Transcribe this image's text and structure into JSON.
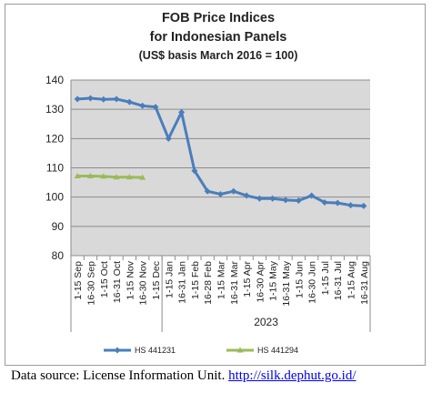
{
  "chart_data": {
    "type": "line",
    "title": [
      "FOB Price Indices",
      "for Indonesian Panels",
      "(US$ basis March 2016 = 100)"
    ],
    "categories": [
      "1-15 Sep",
      "16-30 Sep",
      "1-15 Oct",
      "16-31 Oct",
      "1-15 Nov",
      "16-30 Nov",
      "1-15 Dec",
      "1-15 Jan",
      "16-31 Jan",
      "1-15 Feb",
      "16-28 Feb",
      "1-15 Mar",
      "16-31 Mar",
      "1-15 Apr",
      "16-30 Apr",
      "1-15 May",
      "16-31 May",
      "1-15 Jun",
      "16-30 Jun",
      "1-15 Jul",
      "16-31 Jul",
      "1-15 Aug",
      "16-31 Aug"
    ],
    "group_label": "2023",
    "ylim": [
      80,
      140
    ],
    "yticks": [
      80,
      90,
      100,
      110,
      120,
      130,
      140
    ],
    "grid": true,
    "legend_position": "bottom",
    "series": [
      {
        "name": "HS 441231",
        "color": "#4a7ebb",
        "values": [
          133.5,
          133.8,
          133.4,
          133.5,
          132.5,
          131.2,
          130.8,
          120,
          129,
          109,
          102,
          101,
          102,
          100.5,
          99.5,
          99.5,
          99,
          98.8,
          100.5,
          98.2,
          98,
          97.2,
          97
        ]
      },
      {
        "name": "HS 441294",
        "color": "#9bbb59",
        "values": [
          107.2,
          107.2,
          107.1,
          106.8,
          106.8,
          106.7,
          null,
          null,
          null,
          null,
          null,
          null,
          null,
          null,
          null,
          null,
          null,
          null,
          null,
          null,
          null,
          null,
          null
        ]
      }
    ]
  },
  "source": {
    "text": "Data source: License Information Unit. ",
    "link": "http://silk.dephut.go.id/"
  }
}
